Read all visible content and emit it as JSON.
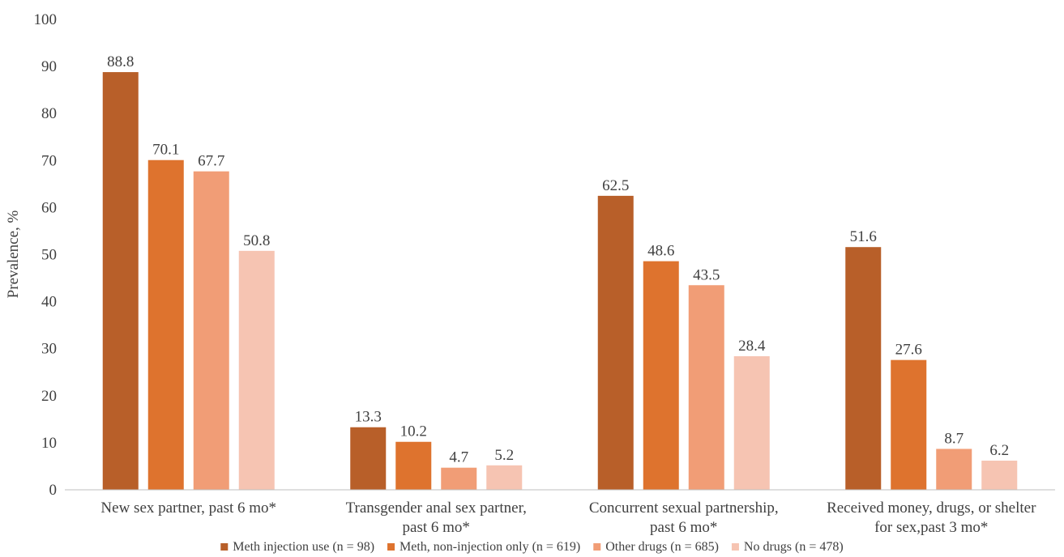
{
  "chart_data": {
    "type": "bar",
    "title": "",
    "xlabel": "",
    "ylabel": "Prevalence, %",
    "ylim": [
      0,
      100
    ],
    "yticks": [
      "0",
      "10",
      "20",
      "30",
      "40",
      "50",
      "60",
      "70",
      "80",
      "90",
      "100"
    ],
    "grid": false,
    "legend_position": "bottom",
    "categories": [
      [
        "New sex partner, past 6 mo*"
      ],
      [
        "Transgender anal sex partner,",
        "past 6 mo*"
      ],
      [
        "Concurrent sexual partnership,",
        "past 6 mo*"
      ],
      [
        "Received money, drugs, or shelter",
        "for sex,past 3 mo*"
      ]
    ],
    "series": [
      {
        "name": "Meth injection use (n = 98)",
        "color": "#B85F29",
        "values": [
          88.8,
          13.3,
          62.5,
          51.6
        ]
      },
      {
        "name": "Meth, non-injection only (n = 619)",
        "color": "#DE732E",
        "values": [
          70.1,
          10.2,
          48.6,
          27.6
        ]
      },
      {
        "name": "Other drugs (n = 685)",
        "color": "#F19D76",
        "values": [
          67.7,
          4.7,
          43.5,
          8.7
        ]
      },
      {
        "name": "No drugs (n = 478)",
        "color": "#F6C4B2",
        "values": [
          50.8,
          5.2,
          28.4,
          6.2
        ]
      }
    ]
  }
}
